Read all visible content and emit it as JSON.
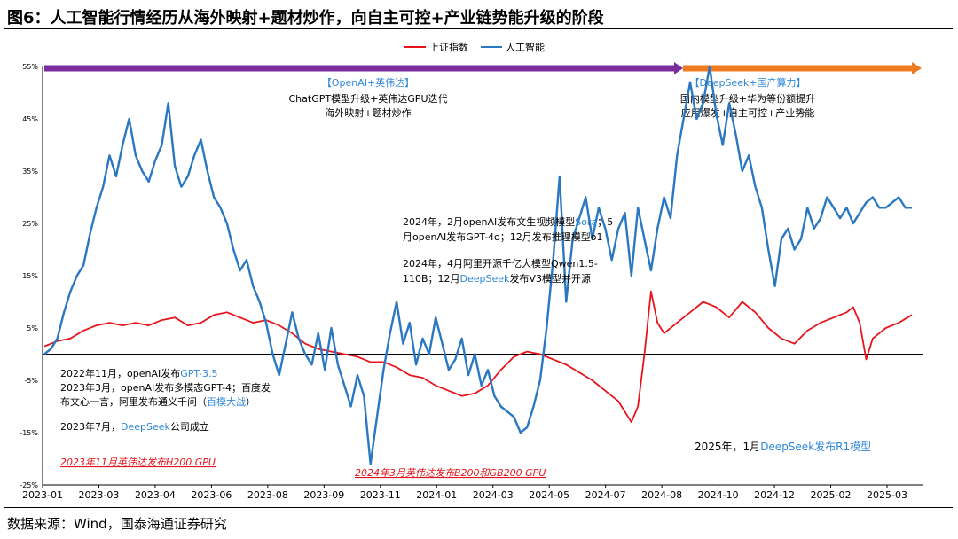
{
  "page": {
    "title": "图6：人工智能行情经历从海外映射+题材炒作，向自主可控+产业链势能升级的阶段",
    "source": "数据来源：Wind，国泰海通证券研究"
  },
  "colors": {
    "sse": "#e8141b",
    "ai": "#2b78c2",
    "phase1_arrow": "#7b2d9e",
    "phase2_arrow": "#ee7b22",
    "highlight": "#2f87d8",
    "event_red": "#e3141b"
  },
  "chart_data": {
    "type": "line",
    "title": "",
    "xlabel": "",
    "ylabel": "",
    "ylim": [
      -25,
      55
    ],
    "yticks": [
      "55%",
      "45%",
      "35%",
      "25%",
      "15%",
      "5%",
      "-5%",
      "-15%",
      "-25%"
    ],
    "x_ticks": [
      "2023-01",
      "2023-03",
      "2023-04",
      "2023-06",
      "2023-08",
      "2023-09",
      "2023-11",
      "2024-01",
      "2024-03",
      "2024-05",
      "2024-07",
      "2024-08",
      "2024-10",
      "2024-12",
      "2025-02",
      "2025-03"
    ],
    "legend": {
      "position": "top-center",
      "entries": [
        "上证指数",
        "人工智能"
      ]
    },
    "series": [
      {
        "name": "上证指数",
        "x": [
          0,
          2,
          4,
          8,
          12,
          16,
          20,
          24,
          28,
          32,
          36,
          40,
          44,
          48,
          52,
          56,
          60,
          64,
          68,
          72,
          76,
          80,
          84,
          88,
          92,
          96,
          100,
          104,
          108,
          112,
          116,
          120,
          124,
          128,
          132,
          136,
          140,
          144,
          148,
          152,
          156,
          160,
          164,
          168,
          172,
          176,
          180,
          182,
          184,
          186,
          188,
          190,
          194,
          198,
          202,
          206,
          210,
          214,
          218,
          222,
          226,
          230,
          234,
          238,
          242,
          246,
          248,
          250,
          252,
          254,
          258,
          262,
          266
        ],
        "values": [
          1.5,
          2.0,
          2.5,
          3.0,
          4.5,
          5.5,
          6.0,
          5.5,
          6.0,
          5.5,
          6.5,
          7.0,
          5.5,
          6.0,
          7.5,
          8.0,
          7.0,
          6.0,
          6.5,
          5.5,
          4.0,
          2.0,
          1.0,
          0.5,
          0.0,
          -0.5,
          -1.5,
          -1.5,
          -2.5,
          -4.0,
          -4.5,
          -6.0,
          -7.0,
          -8.0,
          -7.5,
          -6.0,
          -3.0,
          -0.5,
          0.5,
          0.0,
          -1.0,
          -2.0,
          -3.5,
          -5.0,
          -7.0,
          -9.0,
          -13.0,
          -10.0,
          0.0,
          12.0,
          6.0,
          4.0,
          6.0,
          8.0,
          10.0,
          9.0,
          7.0,
          10.0,
          8.0,
          5.0,
          3.0,
          2.0,
          4.5,
          6.0,
          7.0,
          8.0,
          9.0,
          6.0,
          -1.0,
          3.0,
          5.0,
          6.0,
          7.5
        ]
      },
      {
        "name": "人工智能",
        "x": [
          0,
          2,
          4,
          6,
          8,
          10,
          12,
          14,
          16,
          18,
          20,
          22,
          24,
          26,
          28,
          30,
          32,
          34,
          36,
          38,
          40,
          42,
          44,
          46,
          48,
          50,
          52,
          54,
          56,
          58,
          60,
          62,
          64,
          66,
          68,
          70,
          72,
          74,
          76,
          78,
          80,
          82,
          84,
          86,
          88,
          90,
          92,
          94,
          96,
          98,
          100,
          102,
          104,
          106,
          108,
          110,
          112,
          114,
          116,
          118,
          120,
          122,
          124,
          126,
          128,
          130,
          132,
          134,
          136,
          138,
          140,
          142,
          144,
          146,
          148,
          150,
          152,
          154,
          156,
          158,
          160,
          162,
          164,
          166,
          168,
          170,
          172,
          174,
          176,
          178,
          180,
          182,
          184,
          186,
          188,
          190,
          192,
          194,
          196,
          198,
          200,
          202,
          204,
          206,
          208,
          210,
          212,
          214,
          216,
          218,
          220,
          222,
          224,
          226,
          228,
          230,
          232,
          234,
          236,
          238,
          240,
          242,
          244,
          246,
          248,
          250,
          252,
          254,
          256,
          258,
          260,
          262,
          264,
          266
        ],
        "values": [
          0,
          1,
          3,
          8,
          12,
          15,
          17,
          23,
          28,
          32,
          38,
          34,
          40,
          45,
          38,
          35,
          33,
          37,
          40,
          48,
          36,
          32,
          34,
          38,
          41,
          35,
          30,
          28,
          25,
          20,
          16,
          18,
          13,
          10,
          6,
          0,
          -4,
          2,
          8,
          3,
          0,
          -2,
          4,
          -3,
          5,
          -2,
          -6,
          -10,
          -4,
          -8,
          -21,
          -12,
          -3,
          4,
          10,
          2,
          6,
          -2,
          3,
          0,
          7,
          2,
          -3,
          -1,
          3,
          -4,
          0,
          -6,
          -3,
          -8,
          -10,
          -11,
          -12,
          -15,
          -14,
          -10,
          -5,
          5,
          18,
          34,
          10,
          22,
          26,
          30,
          22,
          28,
          24,
          18,
          24,
          27,
          15,
          28,
          22,
          16,
          24,
          30,
          26,
          38,
          45,
          52,
          45,
          48,
          55,
          46,
          40,
          48,
          42,
          35,
          38,
          32,
          28,
          20,
          13,
          22,
          24,
          20,
          22,
          28,
          24,
          26,
          30,
          28,
          26,
          28,
          25,
          27,
          29,
          30,
          28,
          28,
          29,
          30,
          28,
          28
        ]
      }
    ]
  },
  "phases": [
    {
      "title": "【OpenAI+英伟达】",
      "lines": [
        "ChatGPT模型升级+英伟达GPU迭代",
        "海外映射+题材炒作"
      ]
    },
    {
      "title": "【DeepSeek+国产算力】",
      "lines": [
        "国内模型升级+华为等份额提升",
        "应用爆发+自主可控+产业势能"
      ]
    }
  ],
  "events": {
    "e2024_line1_a": "2024年，2月openAI发布文生视频模型",
    "e2024_line1_b": "Sora",
    "e2024_line1_c": "；5",
    "e2024_line2": "月openAI发布GPT-4o；12月发布推理模型o1",
    "e2024_line3": "2024年，4月阿里开源千亿大模型Qwen1.5-",
    "e2024_line4_a": "110B；12月",
    "e2024_line4_b": "DeepSeek",
    "e2024_line4_c": "发布V3模型并开源",
    "e2022_a": "2022年11月，openAI发布",
    "e2022_b": "GPT-3.5",
    "e2023_3_line1": "2023年3月，openAI发布多模态GPT-4；百度发",
    "e2023_3_line2_a": "布文心一言，阿里发布通义千问（",
    "e2023_3_line2_b": "百模大战",
    "e2023_3_line2_c": "）",
    "e2023_7_a": "2023年7月，",
    "e2023_7_b": "DeepSeek",
    "e2023_7_c": "公司成立",
    "e2023_11": "2023年11月英伟达发布H200 GPU",
    "e2024_3": "2024年3月英伟达发布B200和GB200 GPU",
    "e2025_1_a": "2025年，1月",
    "e2025_1_b": "DeepSeek发布R1模型"
  }
}
